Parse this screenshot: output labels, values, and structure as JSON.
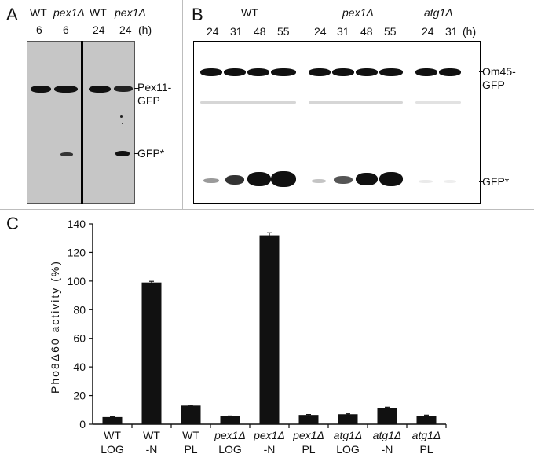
{
  "panelA": {
    "letter": "A",
    "lanes": [
      {
        "strain": "WT",
        "time": "6",
        "italic": false
      },
      {
        "strain": "pex1Δ",
        "time": "6",
        "italic": true
      },
      {
        "strain": "WT",
        "time": "24",
        "italic": false
      },
      {
        "strain": "pex1Δ",
        "time": "24",
        "italic": true
      }
    ],
    "unit": "(h)",
    "band_labels": {
      "top_line1": "Pex11-",
      "top_line2": "GFP",
      "bottom": "GFP*"
    }
  },
  "panelB": {
    "letter": "B",
    "groups": [
      {
        "strain": "WT",
        "italic": false,
        "times": [
          "24",
          "31",
          "48",
          "55"
        ]
      },
      {
        "strain": "pex1Δ",
        "italic": true,
        "times": [
          "24",
          "31",
          "48",
          "55"
        ]
      },
      {
        "strain": "atg1Δ",
        "italic": true,
        "times": [
          "24",
          "31"
        ]
      }
    ],
    "unit": "(h)",
    "band_labels": {
      "top_line1": "Om45-",
      "top_line2": "GFP",
      "bottom": "GFP*"
    }
  },
  "panelC": {
    "letter": "C",
    "chart_data": {
      "type": "bar",
      "categories": [
        {
          "strain": "WT",
          "condition": "LOG"
        },
        {
          "strain": "WT",
          "condition": "-N"
        },
        {
          "strain": "WT",
          "condition": "PL"
        },
        {
          "strain": "pex1Δ",
          "condition": "LOG"
        },
        {
          "strain": "pex1Δ",
          "condition": "-N"
        },
        {
          "strain": "pex1Δ",
          "condition": "PL"
        },
        {
          "strain": "atg1Δ",
          "condition": "LOG"
        },
        {
          "strain": "atg1Δ",
          "condition": "-N"
        },
        {
          "strain": "atg1Δ",
          "condition": "PL"
        }
      ],
      "values": [
        5,
        99,
        13,
        5.5,
        132,
        6.5,
        7,
        11.5,
        6
      ],
      "errors": [
        0.3,
        0.8,
        0.3,
        0.3,
        1.8,
        0.3,
        0.3,
        0.4,
        0.4
      ],
      "ylabel": "Pho8Δ60 activity (%)",
      "ylim": [
        0,
        140
      ],
      "yticks": [
        0,
        20,
        40,
        60,
        80,
        100,
        120,
        140
      ],
      "grid": false,
      "bar_color": "#111111"
    }
  }
}
